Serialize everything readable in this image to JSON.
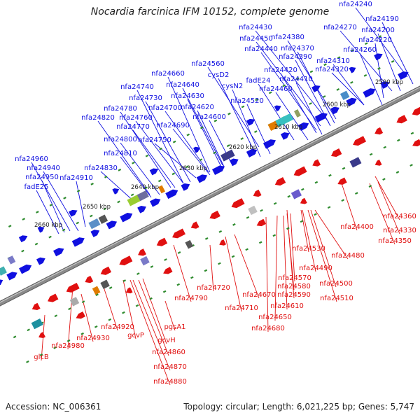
{
  "title": "Nocardia farcinica IFM 10152, complete genome",
  "footer": {
    "accession": "Accession: NC_006361",
    "summary": "Topology: circular; Length: 6,021,225 bp; Genes: 5,747"
  },
  "colors": {
    "forward_gene": "#1010e0",
    "reverse_gene": "#e01010",
    "backbone": "#8a8a8a",
    "tick": "#2e8b2e"
  },
  "kbp_markers": [
    "2590 kbp",
    "2600 kbp",
    "2610 kbp",
    "2620 kbp",
    "2630 kbp",
    "2640 kbp",
    "2650 kbp",
    "2660 kbp"
  ],
  "forward_labels": [
    "nfa24240",
    "nfa24190",
    "nfa24270",
    "nfa24200",
    "nfa24430",
    "nfa24380",
    "nfa24450",
    "nfa24220",
    "nfa24440",
    "nfa24370",
    "nfa24260",
    "nfa24390",
    "nfa24310",
    "nfa24560",
    "nfa24420",
    "nfa24320",
    "nfa24660",
    "cysD2",
    "fadE24",
    "nfa24410",
    "nfa24640",
    "cysN2",
    "nfa24740",
    "nfa24460",
    "nfa24630",
    "nfa24730",
    "nfa24520",
    "nfa24780",
    "nfa24700",
    "nfa24620",
    "nfa24820",
    "nfa24760",
    "nfa24600",
    "nfa24770",
    "nfa24690",
    "nfa24800",
    "nfa24750",
    "nfa24810",
    "nfa24960",
    "nfa24830",
    "nfa24940",
    "nfa24950",
    "nfa24910",
    "fadE25"
  ],
  "reverse_labels": [
    "nfa24360",
    "nfa24400",
    "nfa24330",
    "nfa24350",
    "nfa24530",
    "nfa24480",
    "nfa24490",
    "nfa24570",
    "nfa24580",
    "nfa24500",
    "nfa24720",
    "nfa24670",
    "nfa24590",
    "nfa24510",
    "nfa24790",
    "nfa24710",
    "nfa24610",
    "nfa24650",
    "nfa24680",
    "nfa24920",
    "pgsA1",
    "nfa24930",
    "gcvP",
    "gcvH",
    "nfa24980",
    "nfa24860",
    "glcB",
    "nfa24870",
    "nfa24880"
  ]
}
